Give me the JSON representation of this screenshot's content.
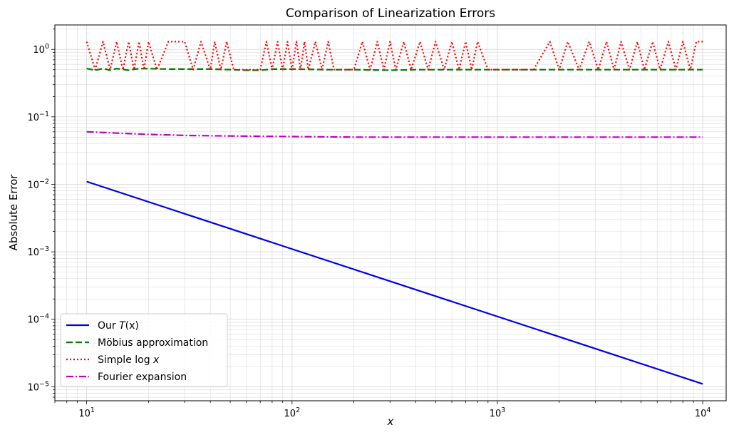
{
  "chart_data": {
    "type": "line",
    "title": "Comparison of Linearization Errors",
    "xlabel": "x",
    "ylabel": "Absolute Error",
    "xscale": "log",
    "yscale": "log",
    "xlim": [
      7,
      13000
    ],
    "ylim": [
      6.2e-06,
      2.3
    ],
    "grid": true,
    "legend_position": "lower-left",
    "x_ticks": [
      {
        "base": "10",
        "exp": "1"
      },
      {
        "base": "10",
        "exp": "2"
      },
      {
        "base": "10",
        "exp": "3"
      },
      {
        "base": "10",
        "exp": "4"
      }
    ],
    "y_ticks": [
      {
        "base": "10",
        "exp": "−5"
      },
      {
        "base": "10",
        "exp": "−4"
      },
      {
        "base": "10",
        "exp": "−3"
      },
      {
        "base": "10",
        "exp": "−2"
      },
      {
        "base": "10",
        "exp": "−1"
      },
      {
        "base": "10",
        "exp": "0"
      }
    ],
    "series": [
      {
        "name": "Our T(x)",
        "legend_plain": "Our ",
        "legend_math": "T",
        "legend_tail": "(x)",
        "color": "#0000ee",
        "dash": "",
        "x": [
          10,
          10000
        ],
        "y": [
          0.011,
          1.1e-05
        ]
      },
      {
        "name": "Möbius approximation",
        "legend_plain": "Möbius approximation",
        "legend_math": "",
        "legend_tail": "",
        "color": "#007f00",
        "dash": "9,4",
        "x": [
          10,
          11,
          12,
          13,
          14,
          16,
          18,
          20,
          25,
          30,
          40,
          50,
          60,
          70,
          80,
          100,
          150,
          200,
          300,
          400,
          500,
          700,
          1000,
          2000,
          3000,
          5000,
          7000,
          10000
        ],
        "y": [
          0.52,
          0.49,
          0.52,
          0.49,
          0.52,
          0.49,
          0.52,
          0.52,
          0.51,
          0.51,
          0.51,
          0.5,
          0.49,
          0.49,
          0.51,
          0.51,
          0.5,
          0.5,
          0.49,
          0.5,
          0.5,
          0.5,
          0.5,
          0.5,
          0.5,
          0.5,
          0.5,
          0.5
        ]
      },
      {
        "name": "Simple log x",
        "legend_plain": "Simple log ",
        "legend_math": "x",
        "legend_tail": "",
        "color": "#ff0000",
        "dash": "2,3",
        "x": [
          10,
          11,
          12,
          13,
          14,
          15,
          16,
          17,
          18,
          19,
          20,
          22,
          25,
          30,
          33,
          36,
          40,
          42,
          45,
          48,
          52,
          55,
          60,
          70,
          75,
          80,
          85,
          90,
          95,
          100,
          105,
          110,
          115,
          120,
          130,
          140,
          150,
          160,
          170,
          180,
          200,
          220,
          240,
          260,
          280,
          300,
          320,
          350,
          380,
          420,
          460,
          500,
          550,
          600,
          650,
          700,
          750,
          800,
          900,
          1000,
          1200,
          1500,
          1800,
          2000,
          2200,
          2500,
          2800,
          3100,
          3400,
          3700,
          4000,
          4400,
          4800,
          5200,
          5700,
          6200,
          6800,
          7400,
          8000,
          8700,
          9300,
          10000
        ],
        "y": [
          1.3,
          0.5,
          1.3,
          0.5,
          1.3,
          0.5,
          1.3,
          0.5,
          1.3,
          0.5,
          1.3,
          0.5,
          1.3,
          1.3,
          0.5,
          1.3,
          0.5,
          1.3,
          0.5,
          1.3,
          0.5,
          0.5,
          0.5,
          0.5,
          1.3,
          0.5,
          1.3,
          0.5,
          1.3,
          0.5,
          1.3,
          0.5,
          1.3,
          0.5,
          1.3,
          0.5,
          1.3,
          0.5,
          0.5,
          0.5,
          0.5,
          1.3,
          0.5,
          1.3,
          0.5,
          1.3,
          0.5,
          1.3,
          0.5,
          1.3,
          0.5,
          1.3,
          0.5,
          1.3,
          0.5,
          1.3,
          0.5,
          1.3,
          0.5,
          0.5,
          0.5,
          0.5,
          1.3,
          0.5,
          1.3,
          0.5,
          1.3,
          0.5,
          1.3,
          0.5,
          1.3,
          0.5,
          1.3,
          0.5,
          1.3,
          0.5,
          1.3,
          0.5,
          1.3,
          0.5,
          1.3,
          1.3
        ]
      },
      {
        "name": "Fourier expansion",
        "legend_plain": "Fourier expansion",
        "legend_math": "",
        "legend_tail": "",
        "color": "#bf00bf",
        "dash": "10,3,2,3",
        "x": [
          10,
          15,
          20,
          30,
          50,
          100,
          200,
          500,
          1000,
          3000,
          10000
        ],
        "y": [
          0.06,
          0.057,
          0.055,
          0.053,
          0.052,
          0.051,
          0.05,
          0.05,
          0.05,
          0.05,
          0.05
        ]
      }
    ]
  }
}
